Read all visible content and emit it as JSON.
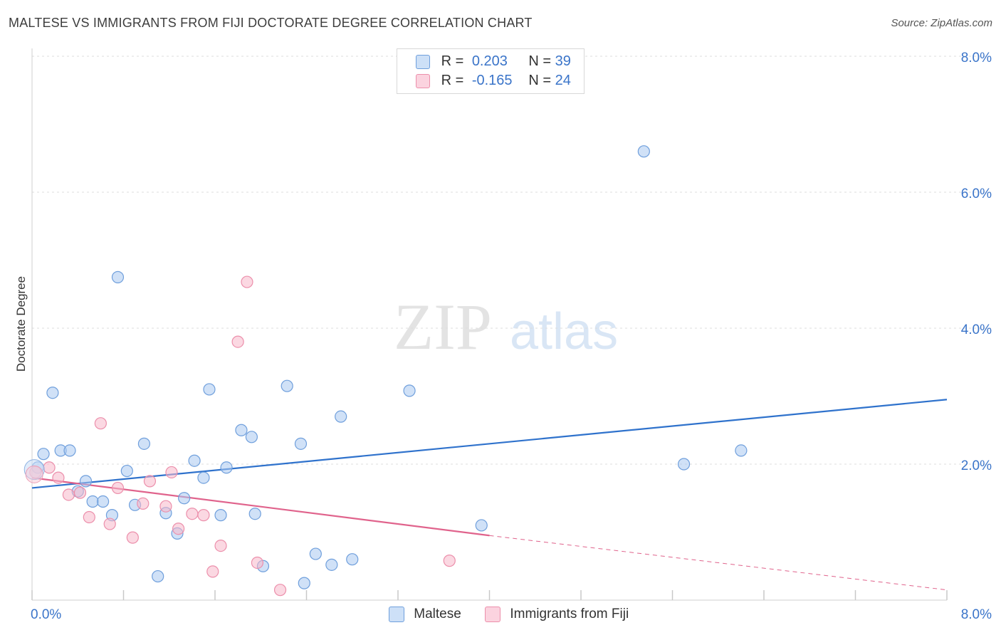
{
  "title": "MALTESE VS IMMIGRANTS FROM FIJI DOCTORATE DEGREE CORRELATION CHART",
  "source": "Source: ZipAtlas.com",
  "watermark": {
    "zip": "ZIP",
    "atlas": "atlas"
  },
  "legend_top": {
    "rows": [
      {
        "r_label": "R =",
        "r_value": "0.203",
        "n_label": "N =",
        "n_value": "39",
        "color": "#a9c8f0"
      },
      {
        "r_label": "R =",
        "r_value": "-0.165",
        "n_label": "N =",
        "n_value": "24",
        "color": "#f7b8cb"
      }
    ]
  },
  "legend_bottom": [
    {
      "label": "Maltese",
      "color": "#a9c8f0"
    },
    {
      "label": "Immigrants from Fiji",
      "color": "#f7b8cb"
    }
  ],
  "chart_data": {
    "type": "scatter",
    "title": "MALTESE VS IMMIGRANTS FROM FIJI DOCTORATE DEGREE CORRELATION CHART",
    "xlabel": "",
    "ylabel": "Doctorate Degree",
    "xlim": [
      0,
      8
    ],
    "ylim": [
      0,
      8
    ],
    "x_tick_labels": [
      "0.0%",
      "8.0%"
    ],
    "y_tick_labels": [
      "2.0%",
      "4.0%",
      "6.0%",
      "8.0%"
    ],
    "y_ticks": [
      2,
      4,
      6,
      8
    ],
    "grid": true,
    "series": [
      {
        "name": "Maltese",
        "color": "#a9c8f0",
        "edge": "#6f9fdc",
        "line_color": "#2f72cc",
        "trend": {
          "x0": 0,
          "y0": 1.65,
          "x1": 8,
          "y1": 2.95
        },
        "points": [
          [
            0.05,
            1.95
          ],
          [
            0.1,
            2.15
          ],
          [
            0.18,
            3.05
          ],
          [
            0.25,
            2.2
          ],
          [
            0.33,
            2.2
          ],
          [
            0.4,
            1.6
          ],
          [
            0.47,
            1.75
          ],
          [
            0.53,
            1.45
          ],
          [
            0.62,
            1.45
          ],
          [
            0.7,
            1.25
          ],
          [
            0.75,
            4.75
          ],
          [
            0.83,
            1.9
          ],
          [
            0.9,
            1.4
          ],
          [
            0.98,
            2.3
          ],
          [
            1.1,
            0.35
          ],
          [
            1.17,
            1.28
          ],
          [
            1.27,
            0.98
          ],
          [
            1.33,
            1.5
          ],
          [
            1.42,
            2.05
          ],
          [
            1.5,
            1.8
          ],
          [
            1.55,
            3.1
          ],
          [
            1.65,
            1.25
          ],
          [
            1.7,
            1.95
          ],
          [
            1.83,
            2.5
          ],
          [
            1.92,
            2.4
          ],
          [
            1.95,
            1.27
          ],
          [
            2.02,
            0.5
          ],
          [
            2.23,
            3.15
          ],
          [
            2.35,
            2.3
          ],
          [
            2.38,
            0.25
          ],
          [
            2.48,
            0.68
          ],
          [
            2.62,
            0.52
          ],
          [
            2.7,
            2.7
          ],
          [
            2.8,
            0.6
          ],
          [
            3.3,
            3.08
          ],
          [
            3.93,
            1.1
          ],
          [
            5.35,
            6.6
          ],
          [
            5.7,
            2.0
          ],
          [
            6.2,
            2.2
          ]
        ]
      },
      {
        "name": "Immigrants from Fiji",
        "color": "#f7b8cb",
        "edge": "#ec8fab",
        "line_color": "#e0638c",
        "trend": {
          "x0": 0,
          "y0": 1.8,
          "x1": 4.0,
          "y1": 0.95,
          "dash_to_x": 8,
          "dash_to_y": 0.15
        },
        "points": [
          [
            0.03,
            1.88
          ],
          [
            0.15,
            1.95
          ],
          [
            0.23,
            1.8
          ],
          [
            0.32,
            1.55
          ],
          [
            0.42,
            1.58
          ],
          [
            0.5,
            1.22
          ],
          [
            0.6,
            2.6
          ],
          [
            0.68,
            1.12
          ],
          [
            0.75,
            1.65
          ],
          [
            0.88,
            0.92
          ],
          [
            0.97,
            1.42
          ],
          [
            1.03,
            1.75
          ],
          [
            1.17,
            1.38
          ],
          [
            1.22,
            1.88
          ],
          [
            1.28,
            1.05
          ],
          [
            1.4,
            1.27
          ],
          [
            1.5,
            1.25
          ],
          [
            1.58,
            0.42
          ],
          [
            1.65,
            0.8
          ],
          [
            1.8,
            3.8
          ],
          [
            1.88,
            4.68
          ],
          [
            1.97,
            0.55
          ],
          [
            2.17,
            0.15
          ],
          [
            3.65,
            0.58
          ]
        ]
      }
    ]
  }
}
